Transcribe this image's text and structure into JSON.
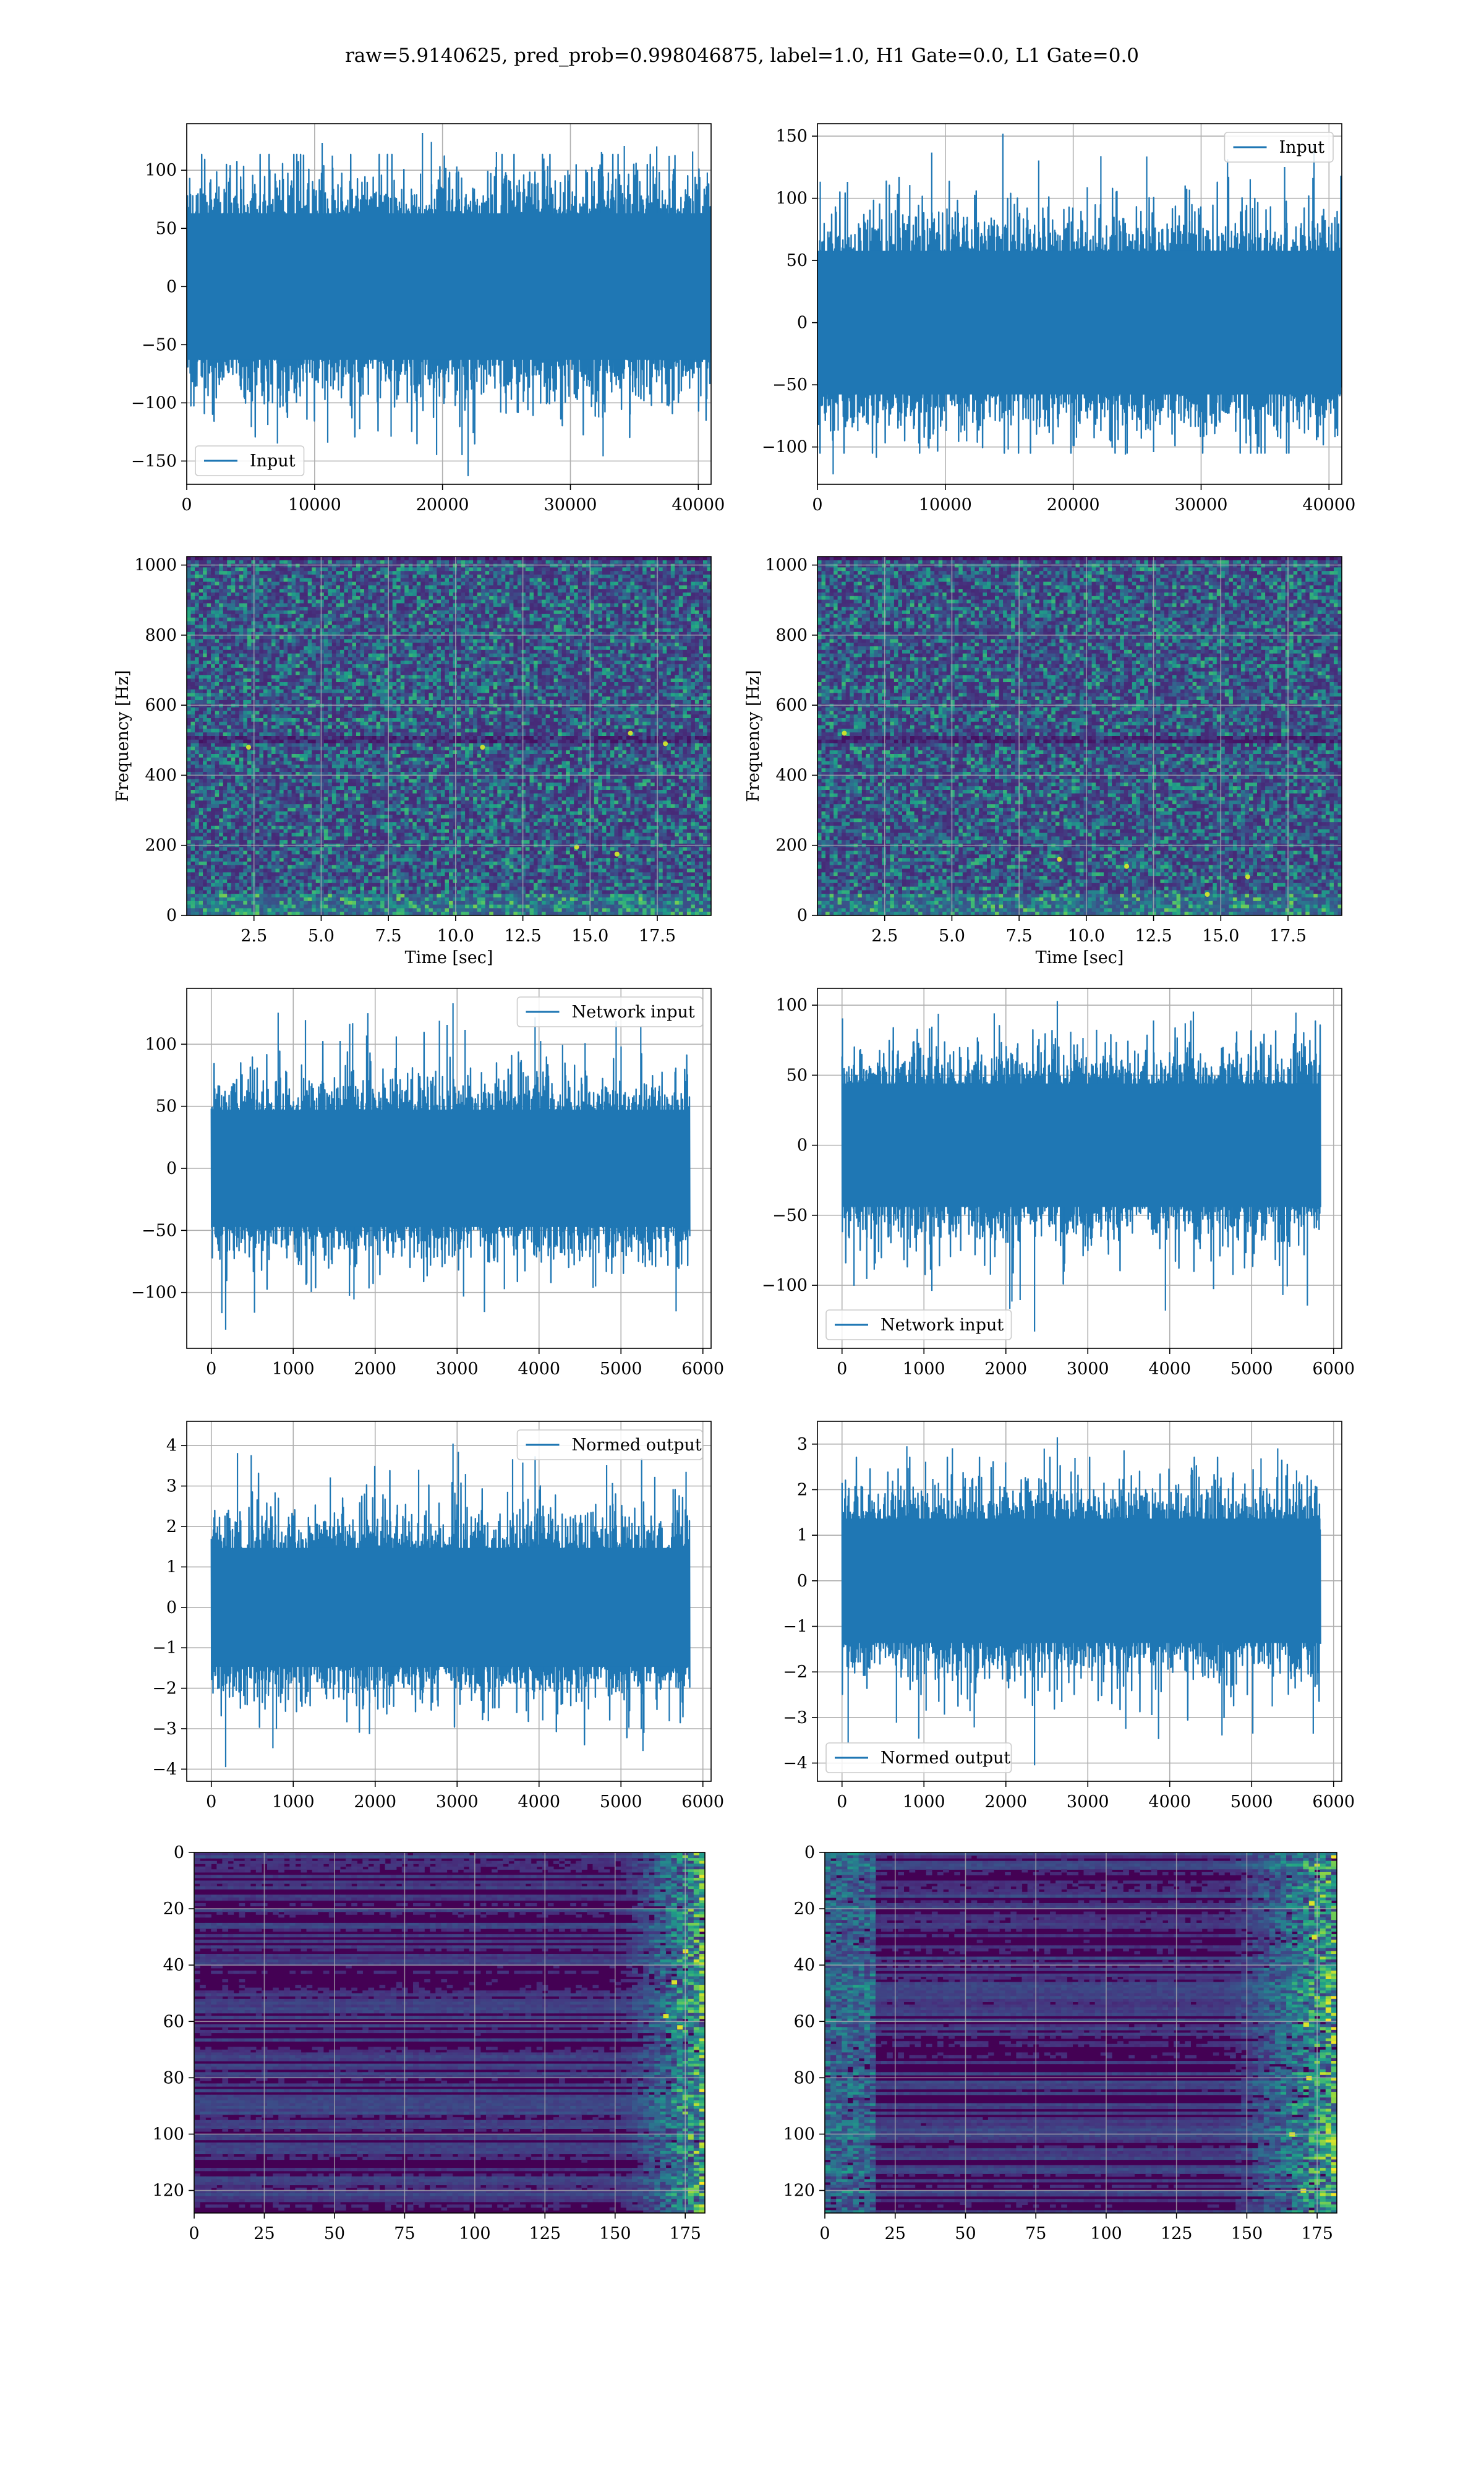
{
  "figure": {
    "suptitle": "raw=5.9140625, pred_prob=0.998046875, label=1.0, H1 Gate=0.0, L1 Gate=0.0",
    "colors": {
      "line": "#1f77b4",
      "grid": "#b0b0b0",
      "axes": "#000000",
      "viridis": [
        "#440154",
        "#46327e",
        "#365c8d",
        "#277f8e",
        "#1fa187",
        "#4ac16d",
        "#a0da39",
        "#fde725"
      ]
    }
  },
  "chart_data": [
    {
      "type": "line",
      "row": 1,
      "col": 1,
      "title": "",
      "xlabel": "",
      "ylabel": "",
      "xlim": [
        0,
        41000
      ],
      "ylim": [
        -170,
        140
      ],
      "xticks": [
        0,
        10000,
        20000,
        30000,
        40000
      ],
      "yticks": [
        -150,
        -100,
        -50,
        0,
        50,
        100
      ],
      "series": [
        {
          "name": "Input",
          "n_points": 40960,
          "x_range": [
            0,
            40960
          ],
          "amplitude_typical": 60,
          "peak_max": 132,
          "peak_min": -163,
          "peak_min_at": 22000
        }
      ],
      "legend": "lower-left",
      "grid": true
    },
    {
      "type": "line",
      "row": 1,
      "col": 2,
      "title": "",
      "xlabel": "",
      "ylabel": "",
      "xlim": [
        0,
        41000
      ],
      "ylim": [
        -130,
        160
      ],
      "xticks": [
        0,
        10000,
        20000,
        30000,
        40000
      ],
      "yticks": [
        -100,
        -50,
        0,
        50,
        100,
        150
      ],
      "series": [
        {
          "name": "Input",
          "n_points": 40960,
          "x_range": [
            0,
            40960
          ],
          "amplitude_typical": 55,
          "peak_max": 152,
          "peak_max_at": 14500,
          "peak_min": -122
        }
      ],
      "legend": "top-right",
      "grid": true
    },
    {
      "type": "heatmap",
      "row": 2,
      "col": 1,
      "title": "",
      "xlabel": "Time [sec]",
      "ylabel": "Frequency [Hz]",
      "xlim": [
        0,
        19.5
      ],
      "ylim": [
        0,
        1024
      ],
      "xticks": [
        2.5,
        5.0,
        7.5,
        10.0,
        12.5,
        15.0,
        17.5
      ],
      "yticks": [
        0,
        200,
        400,
        600,
        800,
        1000
      ],
      "xtick_labels": [
        "2.5",
        "5.0",
        "7.5",
        "10.0",
        "12.5",
        "15.0",
        "17.5"
      ],
      "description_values": {
        "low_band_hz": 60,
        "dark_band_hz": 500
      },
      "hot_spots": [
        [
          11.0,
          480
        ],
        [
          14.5,
          195
        ],
        [
          16.0,
          175
        ],
        [
          16.5,
          520
        ],
        [
          2.3,
          480
        ],
        [
          17.8,
          490
        ]
      ],
      "colormap": "viridis",
      "grid": true
    },
    {
      "type": "heatmap",
      "row": 2,
      "col": 2,
      "title": "",
      "xlabel": "Time [sec]",
      "ylabel": "Frequency [Hz]",
      "xlim": [
        0,
        19.5
      ],
      "ylim": [
        0,
        1024
      ],
      "xticks": [
        2.5,
        5.0,
        7.5,
        10.0,
        12.5,
        15.0,
        17.5
      ],
      "yticks": [
        0,
        200,
        400,
        600,
        800,
        1000
      ],
      "xtick_labels": [
        "2.5",
        "5.0",
        "7.5",
        "10.0",
        "12.5",
        "15.0",
        "17.5"
      ],
      "description_values": {
        "low_band_hz": 60,
        "dark_band_hz": 500
      },
      "hot_spots": [
        [
          9.0,
          160
        ],
        [
          11.5,
          140
        ],
        [
          14.5,
          60
        ],
        [
          16.0,
          110
        ],
        [
          1.0,
          520
        ]
      ],
      "colormap": "viridis",
      "grid": true
    },
    {
      "type": "line",
      "row": 3,
      "col": 1,
      "title": "",
      "xlabel": "",
      "ylabel": "",
      "xlim": [
        -300,
        6100
      ],
      "ylim": [
        -145,
        145
      ],
      "xticks": [
        0,
        1000,
        2000,
        3000,
        4000,
        5000,
        6000
      ],
      "yticks": [
        -100,
        -50,
        0,
        50,
        100
      ],
      "series": [
        {
          "name": "Network input",
          "n_points": 5840,
          "x_range": [
            0,
            5840
          ],
          "amplitude_typical": 45,
          "peak_max": 133,
          "peak_max_at": 2950,
          "peak_min": -130
        }
      ],
      "legend": "top-right",
      "grid": true
    },
    {
      "type": "line",
      "row": 3,
      "col": 2,
      "title": "",
      "xlabel": "",
      "ylabel": "",
      "xlim": [
        -300,
        6100
      ],
      "ylim": [
        -145,
        112
      ],
      "xticks": [
        0,
        1000,
        2000,
        3000,
        4000,
        5000,
        6000
      ],
      "yticks": [
        -100,
        -50,
        0,
        50,
        100
      ],
      "series": [
        {
          "name": "Network input",
          "n_points": 5840,
          "x_range": [
            0,
            5840
          ],
          "amplitude_typical": 42,
          "peak_max": 103,
          "peak_min": -133,
          "peak_min_at": 2350
        }
      ],
      "legend": "lower-left",
      "grid": true
    },
    {
      "type": "line",
      "row": 4,
      "col": 1,
      "title": "",
      "xlabel": "",
      "ylabel": "",
      "xlim": [
        -300,
        6100
      ],
      "ylim": [
        -4.3,
        4.6
      ],
      "xticks": [
        0,
        1000,
        2000,
        3000,
        4000,
        5000,
        6000
      ],
      "yticks": [
        -4,
        -3,
        -2,
        -1,
        0,
        1,
        2,
        3,
        4
      ],
      "series": [
        {
          "name": "Normed output",
          "n_points": 5840,
          "x_range": [
            0,
            5840
          ],
          "amplitude_typical": 1.4,
          "peak_max": 4.05,
          "peak_max_at": 2950,
          "peak_min": -3.95
        }
      ],
      "legend": "top-right",
      "grid": true
    },
    {
      "type": "line",
      "row": 4,
      "col": 2,
      "title": "",
      "xlabel": "",
      "ylabel": "",
      "xlim": [
        -300,
        6100
      ],
      "ylim": [
        -4.4,
        3.5
      ],
      "xticks": [
        0,
        1000,
        2000,
        3000,
        4000,
        5000,
        6000
      ],
      "yticks": [
        -4,
        -3,
        -2,
        -1,
        0,
        1,
        2,
        3
      ],
      "series": [
        {
          "name": "Normed output",
          "n_points": 5840,
          "x_range": [
            0,
            5840
          ],
          "amplitude_typical": 1.3,
          "peak_max": 3.15,
          "peak_min": -4.05,
          "peak_min_at": 2350
        }
      ],
      "legend": "lower-left",
      "grid": true
    },
    {
      "type": "heatmap",
      "row": 5,
      "col": 1,
      "title": "",
      "xlabel": "",
      "ylabel": "",
      "xlim": [
        0,
        182
      ],
      "ylim": [
        128,
        0
      ],
      "xticks": [
        0,
        25,
        50,
        75,
        100,
        125,
        150,
        175
      ],
      "yticks": [
        0,
        20,
        40,
        60,
        80,
        100,
        120
      ],
      "shape": [
        128,
        182
      ],
      "activity_onset_col": 150,
      "hot_spots": [
        [
          171,
          46
        ],
        [
          173,
          62
        ],
        [
          175,
          35
        ],
        [
          168,
          58
        ]
      ],
      "colormap": "viridis",
      "grid": true
    },
    {
      "type": "heatmap",
      "row": 5,
      "col": 2,
      "title": "",
      "xlabel": "",
      "ylabel": "",
      "xlim": [
        0,
        182
      ],
      "ylim": [
        128,
        0
      ],
      "xticks": [
        0,
        25,
        50,
        75,
        100,
        125,
        150,
        175
      ],
      "yticks": [
        0,
        20,
        40,
        60,
        80,
        100,
        120
      ],
      "shape": [
        128,
        182
      ],
      "activity_onset_col": 140,
      "hot_spots": [
        [
          171,
          61
        ],
        [
          173,
          18
        ],
        [
          174,
          30
        ],
        [
          172,
          80
        ],
        [
          166,
          100
        ],
        [
          170,
          120
        ]
      ],
      "colormap": "viridis",
      "grid": true
    }
  ]
}
